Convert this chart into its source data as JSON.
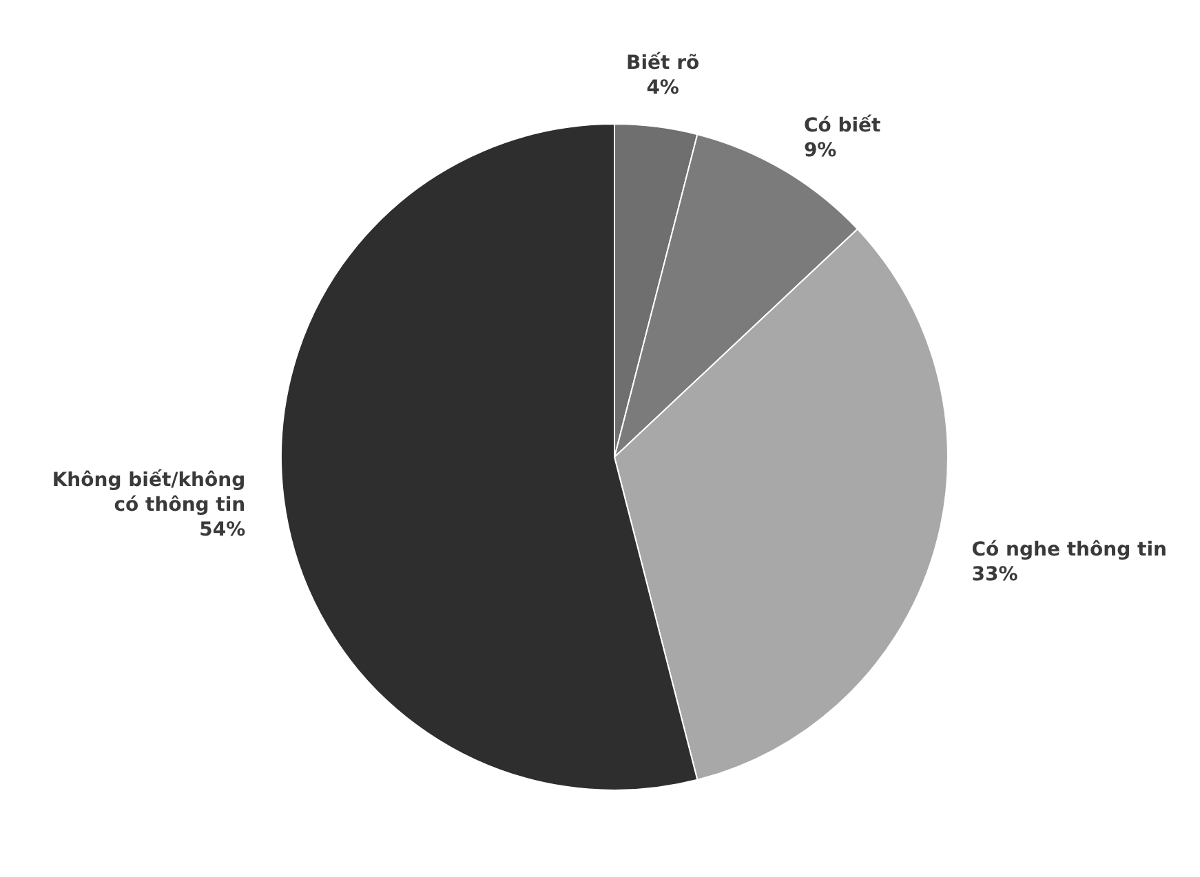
{
  "chart_data": {
    "type": "pie",
    "categories": [
      "Biết rõ",
      "Có biết",
      "Có nghe thông tin",
      "Không biết/không có thông tin"
    ],
    "values": [
      4,
      9,
      33,
      54
    ],
    "colors": [
      "#6f6f6f",
      "#7b7b7b",
      "#a8a8a8",
      "#2e2e2e"
    ],
    "value_labels": [
      "4%",
      "9%",
      "33%",
      "54%"
    ]
  }
}
